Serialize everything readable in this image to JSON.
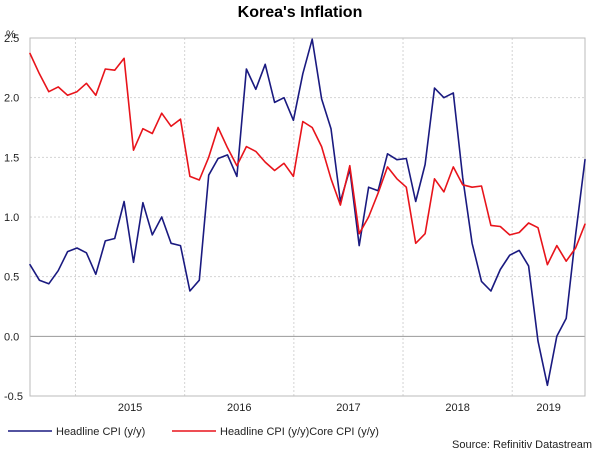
{
  "chart_data": {
    "type": "line",
    "title": "Korea's Inflation",
    "ylabel": "%",
    "xlabel": "",
    "ylim": [
      -0.5,
      2.5
    ],
    "yticks": [
      "2.5",
      "2.0",
      "1.5",
      "1.0",
      "0.5",
      "0.0",
      "-0.5"
    ],
    "ytick_values": [
      2.5,
      2.0,
      1.5,
      1.0,
      0.5,
      0.0,
      -0.5
    ],
    "xticks": [
      "2015",
      "2016",
      "2017",
      "2018",
      "2019"
    ],
    "x_start": "2014-08",
    "x_end": "2019-09",
    "legend": [
      "Headline CPI (y/y)",
      "Headline CPI (y/y)Core CPI (y/y)"
    ],
    "source": "Source: Refinitiv Datastream",
    "grid": true,
    "series": [
      {
        "name": "Headline CPI (y/y)",
        "color": "#1a1a80",
        "values": [
          0.6,
          0.47,
          0.44,
          0.55,
          0.71,
          0.74,
          0.7,
          0.52,
          0.8,
          0.82,
          1.13,
          0.62,
          1.12,
          0.85,
          1.0,
          0.78,
          0.76,
          0.38,
          0.47,
          1.35,
          1.49,
          1.52,
          1.34,
          2.24,
          2.07,
          2.28,
          1.96,
          2.0,
          1.81,
          2.2,
          2.49,
          1.99,
          1.74,
          1.13,
          1.4,
          0.76,
          1.25,
          1.22,
          1.53,
          1.48,
          1.49,
          1.13,
          1.44,
          2.08,
          2.0,
          2.04,
          1.33,
          0.78,
          0.46,
          0.38,
          0.56,
          0.68,
          0.72,
          0.59,
          -0.04,
          -0.41,
          0.0,
          0.15,
          0.85,
          1.48
        ]
      },
      {
        "name": "Headline CPI (y/y)Core CPI (y/y)",
        "color": "#e8141b",
        "values": [
          2.37,
          2.2,
          2.05,
          2.09,
          2.02,
          2.05,
          2.12,
          2.02,
          2.24,
          2.23,
          2.33,
          1.56,
          1.74,
          1.7,
          1.87,
          1.76,
          1.82,
          1.34,
          1.31,
          1.5,
          1.75,
          1.58,
          1.43,
          1.59,
          1.55,
          1.46,
          1.39,
          1.45,
          1.34,
          1.8,
          1.75,
          1.59,
          1.32,
          1.1,
          1.43,
          0.86,
          1.0,
          1.2,
          1.42,
          1.32,
          1.25,
          0.78,
          0.86,
          1.32,
          1.21,
          1.42,
          1.27,
          1.25,
          1.26,
          0.93,
          0.92,
          0.85,
          0.87,
          0.95,
          0.91,
          0.6,
          0.76,
          0.63,
          0.74,
          0.94
        ]
      }
    ]
  }
}
